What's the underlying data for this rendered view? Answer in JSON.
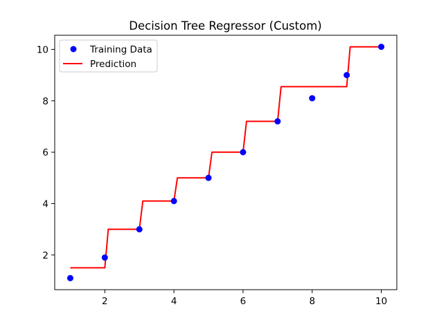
{
  "chart_data": {
    "type": "scatter",
    "title": "Decision Tree Regressor (Custom)",
    "xlabel": "",
    "ylabel": "",
    "xlim": [
      0.55,
      10.45
    ],
    "ylim": [
      0.65,
      10.55
    ],
    "xticks": [
      2,
      4,
      6,
      8,
      10
    ],
    "yticks": [
      2,
      4,
      6,
      8,
      10
    ],
    "grid": false,
    "legend_position": "upper-left",
    "series": [
      {
        "name": "Training Data",
        "kind": "scatter",
        "color": "#0000ff",
        "x": [
          1,
          2,
          3,
          4,
          5,
          6,
          7,
          8,
          9,
          10
        ],
        "y": [
          1.1,
          1.9,
          3.0,
          4.1,
          5.0,
          6.0,
          7.2,
          8.1,
          9.0,
          10.1
        ]
      },
      {
        "name": "Prediction",
        "kind": "line",
        "color": "#ff0000",
        "x": [
          1.0,
          2.0,
          2.1,
          3.0,
          3.1,
          4.0,
          4.1,
          5.0,
          5.1,
          6.0,
          6.1,
          7.0,
          7.1,
          9.0,
          9.1,
          10.0
        ],
        "y": [
          1.5,
          1.5,
          3.0,
          3.0,
          4.1,
          4.1,
          5.0,
          5.0,
          6.0,
          6.0,
          7.2,
          7.2,
          8.55,
          8.55,
          10.1,
          10.1
        ]
      }
    ]
  }
}
